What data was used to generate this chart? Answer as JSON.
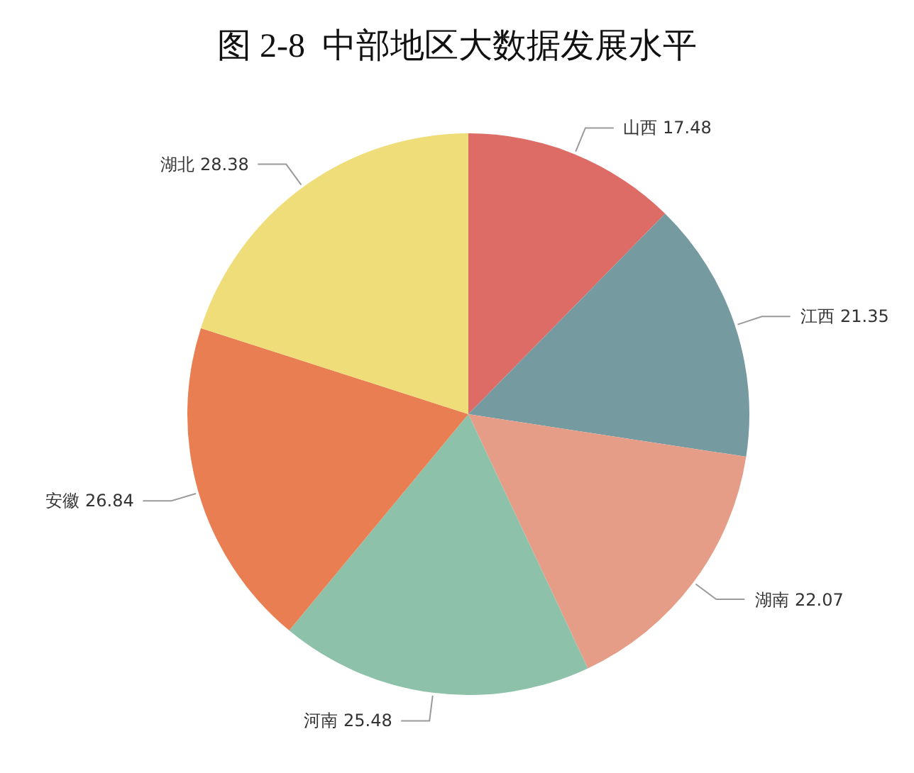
{
  "chart_data": {
    "type": "pie",
    "title": "图 2-8  中部地区大数据发展水平",
    "categories": [
      "山西",
      "江西",
      "湖南",
      "河南",
      "安徽",
      "湖北"
    ],
    "values": [
      17.48,
      21.35,
      22.07,
      25.48,
      26.84,
      28.38
    ],
    "colors": [
      "#dd6b66",
      "#759aa0",
      "#e69d87",
      "#8dc1a9",
      "#ea7e53",
      "#eedd78"
    ],
    "data_labels": true,
    "legend": false
  }
}
